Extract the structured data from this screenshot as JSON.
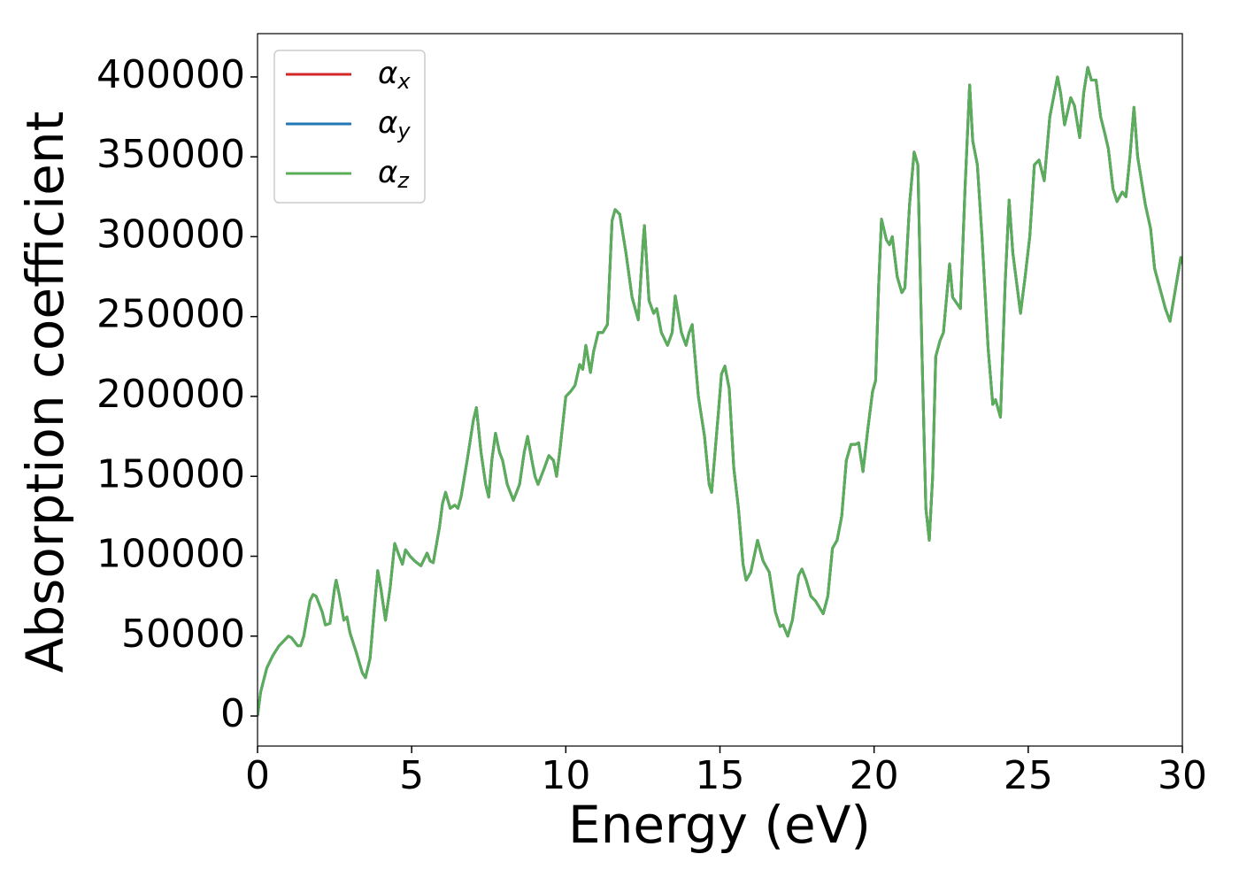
{
  "chart_data": {
    "type": "line",
    "xlabel": "Energy (eV)",
    "ylabel": "Absorption coefficient",
    "xlim": [
      0,
      30
    ],
    "ylim": [
      -18800,
      427100
    ],
    "xticks": [
      0,
      5,
      10,
      15,
      20,
      25,
      30
    ],
    "yticks": [
      0,
      50000,
      100000,
      150000,
      200000,
      250000,
      300000,
      350000,
      400000
    ],
    "legend": "upper left",
    "grid": false,
    "x": [
      0,
      0.1,
      0.3,
      0.5,
      0.7,
      0.9,
      1.0,
      1.1,
      1.3,
      1.4,
      1.5,
      1.7,
      1.8,
      1.9,
      2.1,
      2.2,
      2.35,
      2.5,
      2.55,
      2.65,
      2.8,
      2.9,
      3.0,
      3.2,
      3.4,
      3.5,
      3.65,
      3.8,
      3.9,
      4.0,
      4.15,
      4.3,
      4.45,
      4.6,
      4.7,
      4.8,
      4.95,
      5.1,
      5.3,
      5.5,
      5.6,
      5.7,
      5.9,
      6.0,
      6.1,
      6.25,
      6.4,
      6.5,
      6.6,
      6.8,
      7.0,
      7.1,
      7.25,
      7.4,
      7.5,
      7.6,
      7.72,
      7.85,
      7.95,
      8.1,
      8.3,
      8.5,
      8.65,
      8.76,
      8.9,
      9.0,
      9.1,
      9.3,
      9.45,
      9.6,
      9.7,
      9.8,
      10.0,
      10.15,
      10.3,
      10.45,
      10.55,
      10.65,
      10.8,
      10.9,
      11.05,
      11.2,
      11.35,
      11.5,
      11.6,
      11.75,
      11.95,
      12.15,
      12.35,
      12.5,
      12.55,
      12.7,
      12.85,
      12.95,
      13.1,
      13.3,
      13.45,
      13.55,
      13.75,
      13.9,
      14.0,
      14.1,
      14.3,
      14.5,
      14.65,
      14.73,
      14.95,
      15.05,
      15.16,
      15.3,
      15.45,
      15.6,
      15.75,
      15.85,
      16.0,
      16.22,
      16.4,
      16.6,
      16.8,
      16.95,
      17.05,
      17.2,
      17.35,
      17.55,
      17.66,
      17.8,
      17.95,
      18.1,
      18.35,
      18.5,
      18.65,
      18.8,
      18.95,
      19.1,
      19.25,
      19.4,
      19.5,
      19.64,
      19.8,
      19.95,
      20.05,
      20.15,
      20.24,
      20.4,
      20.5,
      20.59,
      20.75,
      20.9,
      21.0,
      21.15,
      21.3,
      21.42,
      21.55,
      21.68,
      21.79,
      21.9,
      22.0,
      22.14,
      22.25,
      22.45,
      22.55,
      22.8,
      22.95,
      23.1,
      23.2,
      23.35,
      23.5,
      23.7,
      23.85,
      23.94,
      24.1,
      24.25,
      24.38,
      24.5,
      24.75,
      24.9,
      25.05,
      25.2,
      25.35,
      25.52,
      25.7,
      25.95,
      26.05,
      26.18,
      26.38,
      26.5,
      26.67,
      26.8,
      26.93,
      27.05,
      27.2,
      27.35,
      27.48,
      27.6,
      27.75,
      27.88,
      28.05,
      28.17,
      28.3,
      28.43,
      28.55,
      28.8,
      28.97,
      29.1,
      29.31,
      29.45,
      29.6,
      29.8,
      29.95,
      30.0
    ],
    "series": [
      {
        "name": "αx",
        "color": "#d62728",
        "values": [
          0,
          15000,
          30000,
          38000,
          44000,
          48000,
          50000,
          49000,
          44000,
          44000,
          50000,
          72000,
          76000,
          75000,
          65000,
          57000,
          58000,
          80000,
          85000,
          76000,
          60000,
          62000,
          52000,
          40000,
          27000,
          24000,
          36000,
          70000,
          91000,
          80000,
          60000,
          80000,
          108000,
          100000,
          95000,
          104000,
          100000,
          97000,
          94000,
          102000,
          97000,
          96000,
          118000,
          133000,
          140000,
          130000,
          132000,
          130000,
          137000,
          160000,
          185000,
          193000,
          165000,
          145000,
          137000,
          160000,
          177000,
          165000,
          160000,
          145000,
          135000,
          145000,
          165000,
          175000,
          160000,
          150000,
          145000,
          155000,
          163000,
          160000,
          150000,
          165000,
          200000,
          203000,
          207000,
          220000,
          217000,
          232000,
          215000,
          228000,
          240000,
          240000,
          245000,
          310000,
          317000,
          314000,
          290000,
          262000,
          248000,
          295000,
          307000,
          260000,
          252000,
          255000,
          240000,
          232000,
          240000,
          263000,
          240000,
          232000,
          240000,
          245000,
          200000,
          175000,
          145000,
          140000,
          190000,
          214000,
          219000,
          205000,
          155000,
          130000,
          95000,
          85000,
          90000,
          110000,
          97000,
          90000,
          65000,
          56000,
          57000,
          50000,
          60000,
          88000,
          92000,
          85000,
          75000,
          72000,
          64000,
          75000,
          105000,
          110000,
          125000,
          160000,
          170000,
          170000,
          171000,
          153000,
          180000,
          203000,
          210000,
          270000,
          311000,
          298000,
          295000,
          300000,
          275000,
          265000,
          268000,
          320000,
          353000,
          345000,
          230000,
          130000,
          110000,
          150000,
          225000,
          235000,
          240000,
          283000,
          262000,
          255000,
          330000,
          395000,
          360000,
          345000,
          300000,
          230000,
          195000,
          198000,
          187000,
          270000,
          323000,
          290000,
          252000,
          275000,
          300000,
          345000,
          348000,
          335000,
          375000,
          400000,
          390000,
          370000,
          387000,
          382000,
          362000,
          390000,
          406000,
          398000,
          398000,
          375000,
          365000,
          355000,
          330000,
          322000,
          328000,
          325000,
          350000,
          381000,
          350000,
          320000,
          305000,
          280000,
          265000,
          255000,
          247000,
          270000,
          287000,
          283000
        ]
      },
      {
        "name": "αy",
        "color": "#1f77b4",
        "values": [
          0,
          15000,
          30000,
          38000,
          44000,
          48000,
          50000,
          49000,
          44000,
          44000,
          50000,
          72000,
          76000,
          75000,
          65000,
          57000,
          58000,
          80000,
          85000,
          76000,
          60000,
          62000,
          52000,
          40000,
          27000,
          24000,
          36000,
          70000,
          91000,
          80000,
          60000,
          80000,
          108000,
          100000,
          95000,
          104000,
          100000,
          97000,
          94000,
          102000,
          97000,
          96000,
          118000,
          133000,
          140000,
          130000,
          132000,
          130000,
          137000,
          160000,
          185000,
          193000,
          165000,
          145000,
          137000,
          160000,
          177000,
          165000,
          160000,
          145000,
          135000,
          145000,
          165000,
          175000,
          160000,
          150000,
          145000,
          155000,
          163000,
          160000,
          150000,
          165000,
          200000,
          203000,
          207000,
          220000,
          217000,
          232000,
          215000,
          228000,
          240000,
          240000,
          245000,
          310000,
          317000,
          314000,
          290000,
          262000,
          248000,
          295000,
          307000,
          260000,
          252000,
          255000,
          240000,
          232000,
          240000,
          263000,
          240000,
          232000,
          240000,
          245000,
          200000,
          175000,
          145000,
          140000,
          190000,
          214000,
          219000,
          205000,
          155000,
          130000,
          95000,
          85000,
          90000,
          110000,
          97000,
          90000,
          65000,
          56000,
          57000,
          50000,
          60000,
          88000,
          92000,
          85000,
          75000,
          72000,
          64000,
          75000,
          105000,
          110000,
          125000,
          160000,
          170000,
          170000,
          171000,
          153000,
          180000,
          203000,
          210000,
          270000,
          311000,
          298000,
          295000,
          300000,
          275000,
          265000,
          268000,
          320000,
          353000,
          345000,
          230000,
          130000,
          110000,
          150000,
          225000,
          235000,
          240000,
          283000,
          262000,
          255000,
          330000,
          395000,
          360000,
          345000,
          300000,
          230000,
          195000,
          198000,
          187000,
          270000,
          323000,
          290000,
          252000,
          275000,
          300000,
          345000,
          348000,
          335000,
          375000,
          400000,
          390000,
          370000,
          387000,
          382000,
          362000,
          390000,
          406000,
          398000,
          398000,
          375000,
          365000,
          355000,
          330000,
          322000,
          328000,
          325000,
          350000,
          381000,
          350000,
          320000,
          305000,
          280000,
          265000,
          255000,
          247000,
          270000,
          287000,
          283000
        ]
      },
      {
        "name": "αz",
        "color": "#5aae5a",
        "values": [
          0,
          15000,
          30000,
          38000,
          44000,
          48000,
          50000,
          49000,
          44000,
          44000,
          50000,
          72000,
          76000,
          75000,
          65000,
          57000,
          58000,
          80000,
          85000,
          76000,
          60000,
          62000,
          52000,
          40000,
          27000,
          24000,
          36000,
          70000,
          91000,
          80000,
          60000,
          80000,
          108000,
          100000,
          95000,
          104000,
          100000,
          97000,
          94000,
          102000,
          97000,
          96000,
          118000,
          133000,
          140000,
          130000,
          132000,
          130000,
          137000,
          160000,
          185000,
          193000,
          165000,
          145000,
          137000,
          160000,
          177000,
          165000,
          160000,
          145000,
          135000,
          145000,
          165000,
          175000,
          160000,
          150000,
          145000,
          155000,
          163000,
          160000,
          150000,
          165000,
          200000,
          203000,
          207000,
          220000,
          217000,
          232000,
          215000,
          228000,
          240000,
          240000,
          245000,
          310000,
          317000,
          314000,
          290000,
          262000,
          248000,
          295000,
          307000,
          260000,
          252000,
          255000,
          240000,
          232000,
          240000,
          263000,
          240000,
          232000,
          240000,
          245000,
          200000,
          175000,
          145000,
          140000,
          190000,
          214000,
          219000,
          205000,
          155000,
          130000,
          95000,
          85000,
          90000,
          110000,
          97000,
          90000,
          65000,
          56000,
          57000,
          50000,
          60000,
          88000,
          92000,
          85000,
          75000,
          72000,
          64000,
          75000,
          105000,
          110000,
          125000,
          160000,
          170000,
          170000,
          171000,
          153000,
          180000,
          203000,
          210000,
          270000,
          311000,
          298000,
          295000,
          300000,
          275000,
          265000,
          268000,
          320000,
          353000,
          345000,
          230000,
          130000,
          110000,
          150000,
          225000,
          235000,
          240000,
          283000,
          262000,
          255000,
          330000,
          395000,
          360000,
          345000,
          300000,
          230000,
          195000,
          198000,
          187000,
          270000,
          323000,
          290000,
          252000,
          275000,
          300000,
          345000,
          348000,
          335000,
          375000,
          400000,
          390000,
          370000,
          387000,
          382000,
          362000,
          390000,
          406000,
          398000,
          398000,
          375000,
          365000,
          355000,
          330000,
          322000,
          328000,
          325000,
          350000,
          381000,
          350000,
          320000,
          305000,
          280000,
          265000,
          255000,
          247000,
          270000,
          287000,
          283000
        ]
      }
    ]
  }
}
